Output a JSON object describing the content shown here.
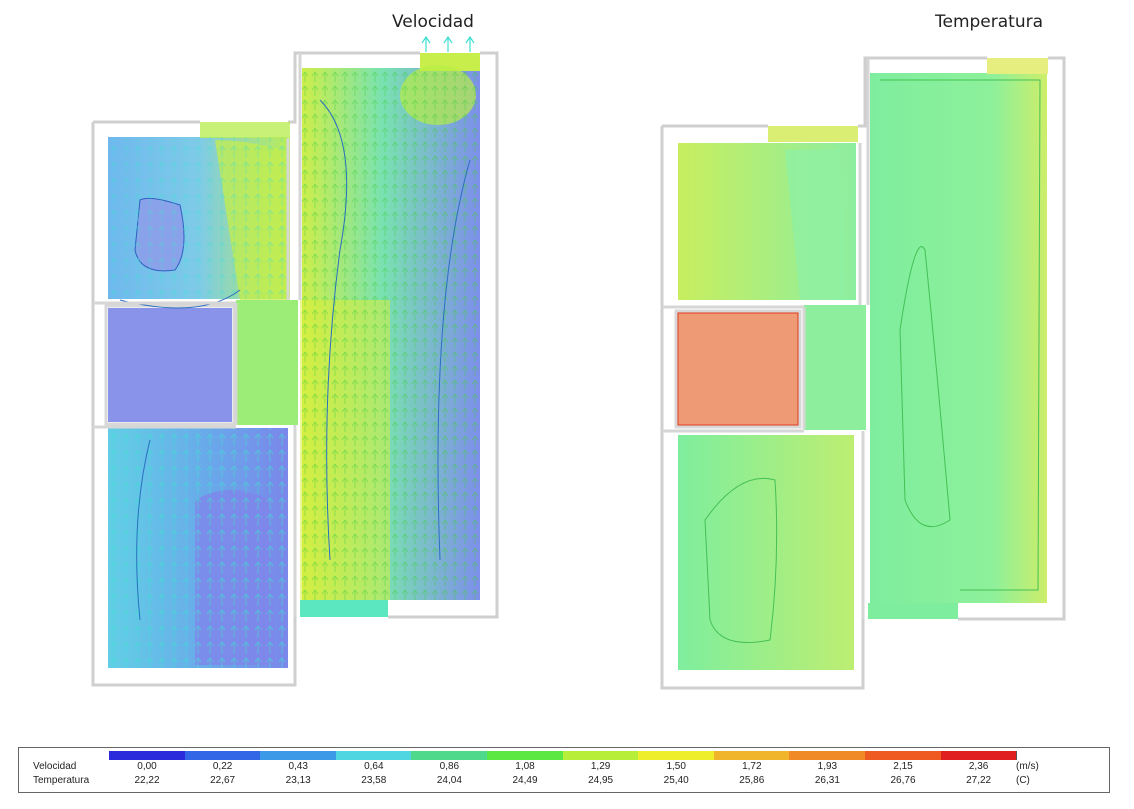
{
  "titles": {
    "velocity": "Velocidad",
    "temperature": "Temperatura"
  },
  "legend": {
    "row_labels": {
      "velocity": "Velocidad",
      "temperature": "Temperatura"
    },
    "colors": [
      "#2b2bdc",
      "#3366e6",
      "#3b99e8",
      "#4fd6e0",
      "#4fd98a",
      "#5be843",
      "#b6ee3a",
      "#eeee2a",
      "#f0b52a",
      "#ef8a26",
      "#ee5a22",
      "#e02020"
    ],
    "velocity_values": [
      "0,00",
      "0,22",
      "0,43",
      "0,64",
      "0,86",
      "1,08",
      "1,29",
      "1,50",
      "1,72",
      "1,93",
      "2,15",
      "2,36"
    ],
    "temperature_values": [
      "22,22",
      "22,67",
      "23,13",
      "23,58",
      "24,04",
      "24,49",
      "24,95",
      "25,40",
      "25,86",
      "26,31",
      "26,76",
      "27,22"
    ],
    "units": {
      "velocity": "(m/s)",
      "temperature": "(C)"
    }
  },
  "fill_colors": {
    "vel_background": "#7da6ec",
    "vel_low": "#8c99ea",
    "vel_mid": "#5bd3e6",
    "vel_high": "#a9ee4a",
    "temp_base": "#7cee9a",
    "temp_warm": "#c6ee63",
    "temp_hot": "#ee9a74"
  }
}
